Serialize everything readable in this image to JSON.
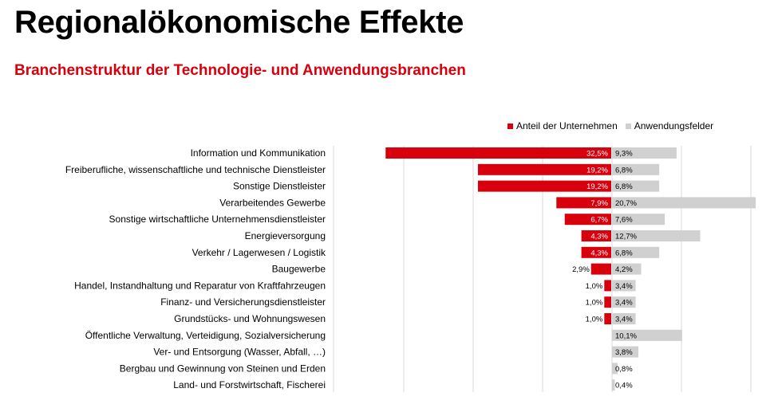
{
  "header": {
    "title": "Regionalökonomische Effekte",
    "subtitle": "Branchenstruktur der Technologie- und Anwendungsbranchen"
  },
  "colors": {
    "accent": "#d9000d",
    "series_left": "#d9000d",
    "series_right": "#d0d0d0",
    "grid": "#d9d9d9"
  },
  "chart_data": {
    "type": "bar",
    "orientation": "horizontal-diverging",
    "title": "Branchenstruktur der Technologie- und Anwendungsbranchen",
    "legend_position": "top-right",
    "grid": true,
    "categories": [
      "Information und Kommunikation",
      "Freiberufliche, wissenschaftliche und technische Dienstleister",
      "Sonstige Dienstleister",
      "Verarbeitendes Gewerbe",
      "Sonstige wirtschaftliche Unternehmensdienstleister",
      "Energieversorgung",
      "Verkehr / Lagerwesen / Logistik",
      "Baugewerbe",
      "Handel, Instandhaltung und Reparatur von Kraftfahrzeugen",
      "Finanz- und Versicherungsdienstleister",
      "Grundstücks- und Wohnungswesen",
      "Öffentliche Verwaltung, Verteidigung, Sozialversicherung",
      "Ver- und Entsorgung (Wasser, Abfall, …)",
      "Bergbau und Gewinnung von Steinen und Erden",
      "Land- und Forstwirtschaft, Fischerei"
    ],
    "series": [
      {
        "name": "Anteil der Unternehmen",
        "values": [
          32.5,
          19.2,
          19.2,
          7.9,
          6.7,
          4.3,
          4.3,
          2.9,
          1.0,
          1.0,
          1.0,
          null,
          null,
          null,
          null
        ],
        "labels": [
          "32,5%",
          "19,2%",
          "19,2%",
          "7,9%",
          "6,7%",
          "4,3%",
          "4,3%",
          "2,9%",
          "1,0%",
          "1,0%",
          "1,0%",
          "",
          "",
          "",
          ""
        ]
      },
      {
        "name": "Anwendungsfelder",
        "values": [
          9.3,
          6.8,
          6.8,
          20.7,
          7.6,
          12.7,
          6.8,
          4.2,
          3.4,
          3.4,
          3.4,
          10.1,
          3.8,
          0.8,
          0.4
        ],
        "labels": [
          "9,3%",
          "6,8%",
          "6,8%",
          "20,7%",
          "7,6%",
          "12,7%",
          "6,8%",
          "4,2%",
          "3,4%",
          "3,4%",
          "3,4%",
          "10,1%",
          "3,8%",
          "0,8%",
          "0,4%"
        ]
      }
    ]
  }
}
